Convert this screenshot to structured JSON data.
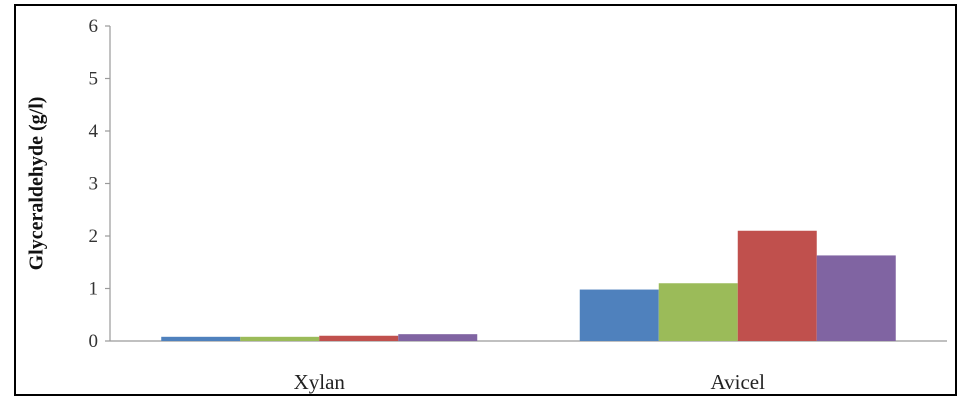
{
  "chart_data": {
    "type": "bar",
    "title": "",
    "xlabel": "",
    "ylabel": "Glyceraldehyde (g/l)",
    "ylim": [
      0,
      6
    ],
    "yticks": [
      "0",
      "1",
      "2",
      "3",
      "4",
      "5",
      "6"
    ],
    "grid": false,
    "categories": [
      "Xylan",
      "Avicel"
    ],
    "series": [
      {
        "color": "#4f81bd",
        "values": [
          0.08,
          0.98
        ]
      },
      {
        "color": "#9bbb59",
        "values": [
          0.08,
          1.1
        ]
      },
      {
        "color": "#c0504d",
        "values": [
          0.1,
          2.1
        ]
      },
      {
        "color": "#8064a2",
        "values": [
          0.13,
          1.63
        ]
      }
    ]
  }
}
